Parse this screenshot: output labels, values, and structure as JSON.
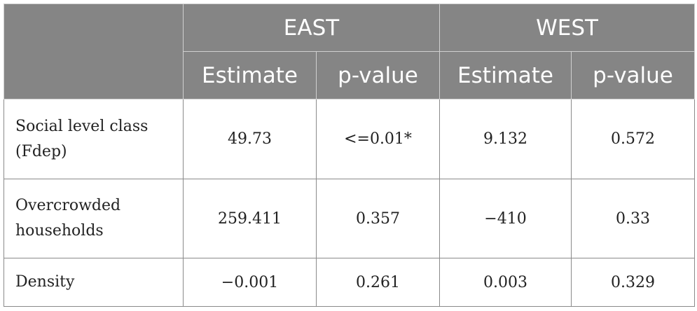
{
  "header": {
    "group_east": "EAST",
    "group_west": "WEST",
    "east_estimate": "Estimate",
    "east_pvalue": "p-value",
    "west_estimate": "Estimate",
    "west_pvalue": "p-value"
  },
  "rows": [
    {
      "label_line1": "Social level class",
      "label_line2": "(Fdep)",
      "east_estimate": "49.73",
      "east_pvalue": "<=0.01*",
      "west_estimate": "9.132",
      "west_pvalue": "0.572"
    },
    {
      "label_line1": "Overcrowded",
      "label_line2": "households",
      "east_estimate": "259.411",
      "east_pvalue": "0.357",
      "west_estimate": "−410",
      "west_pvalue": "0.33"
    },
    {
      "label_line1": "Density",
      "east_estimate": "−0.001",
      "east_pvalue": "0.261",
      "west_estimate": "0.003",
      "west_pvalue": "0.329"
    }
  ],
  "colors": {
    "header_bg": "#858585",
    "header_text": "#ffffff",
    "border": "#8a8a8a"
  }
}
